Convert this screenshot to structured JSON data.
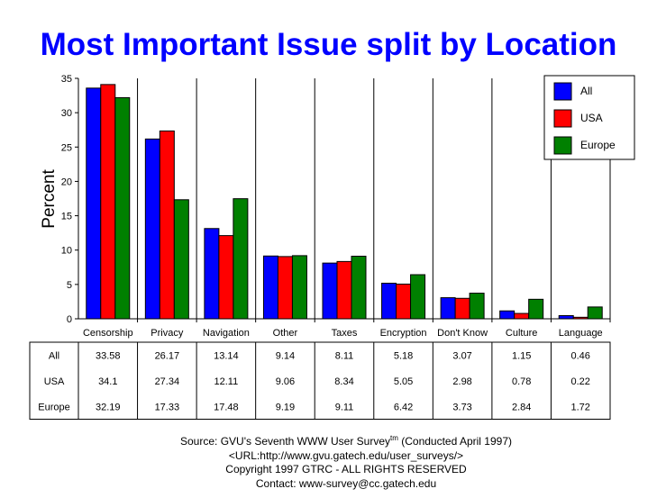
{
  "chart_data": {
    "type": "bar",
    "title": "Most Important Issue split by Location",
    "ylabel": "Percent",
    "xlabel": "",
    "ylim": [
      0,
      35
    ],
    "yticks": [
      0,
      5,
      10,
      15,
      20,
      25,
      30,
      35
    ],
    "categories": [
      "Censorship",
      "Privacy",
      "Navigation",
      "Other",
      "Taxes",
      "Encryption",
      "Don't Know",
      "Culture",
      "Language"
    ],
    "series": [
      {
        "name": "All",
        "color": "#0000ff",
        "values": [
          33.58,
          26.17,
          13.14,
          9.14,
          8.11,
          5.18,
          3.07,
          1.15,
          0.46
        ],
        "labels": [
          "33.58",
          "26.17",
          "13.14",
          "9.14",
          "8.11",
          "5.18",
          "3.07",
          "1.15",
          "0.46"
        ]
      },
      {
        "name": "USA",
        "color": "#ff0000",
        "values": [
          34.1,
          27.34,
          12.11,
          9.06,
          8.34,
          5.05,
          2.98,
          0.78,
          0.22
        ],
        "labels": [
          "34.1",
          "27.34",
          "12.11",
          "9.06",
          "8.34",
          "5.05",
          "2.98",
          "0.78",
          "0.22"
        ]
      },
      {
        "name": "Europe",
        "color": "#008000",
        "values": [
          32.19,
          17.33,
          17.48,
          9.19,
          9.11,
          6.42,
          3.73,
          2.84,
          1.72
        ],
        "labels": [
          "32.19",
          "17.33",
          "17.48",
          "9.19",
          "9.11",
          "6.42",
          "3.73",
          "2.84",
          "1.72"
        ]
      }
    ],
    "legend_position": "top-right",
    "grid": false
  },
  "footer": {
    "source_prefix": "Source: GVU's Seventh WWW User Survey",
    "source_sup": "tm",
    "source_suffix": " (Conducted April 1997)",
    "url": "<URL:http://www.gvu.gatech.edu/user_surveys/>",
    "copyright": "Copyright 1997 GTRC - ALL RIGHTS RESERVED",
    "contact": "Contact: www-survey@cc.gatech.edu"
  }
}
